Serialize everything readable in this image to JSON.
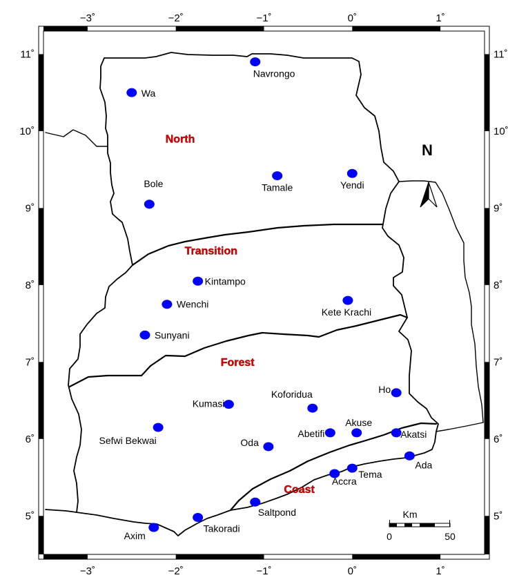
{
  "map": {
    "axes": {
      "x_ticks": [
        {
          "value": -3,
          "label": "−3˚"
        },
        {
          "value": -2,
          "label": "−2˚"
        },
        {
          "value": -1,
          "label": "−1˚"
        },
        {
          "value": 0,
          "label": "0˚"
        },
        {
          "value": 1,
          "label": "1˚"
        }
      ],
      "y_ticks": [
        {
          "value": 5,
          "label": "5˚"
        },
        {
          "value": 6,
          "label": "6˚"
        },
        {
          "value": 7,
          "label": "7˚"
        },
        {
          "value": 8,
          "label": "8˚"
        },
        {
          "value": 9,
          "label": "9˚"
        },
        {
          "value": 10,
          "label": "10˚"
        },
        {
          "value": 11,
          "label": "11˚"
        }
      ],
      "x_range": [
        -3.5,
        1.5
      ],
      "y_range": [
        4.5,
        11.3
      ]
    },
    "zones": [
      {
        "name": "North",
        "lon": -1.95,
        "lat": 9.85
      },
      {
        "name": "Transition",
        "lon": -1.6,
        "lat": 8.4
      },
      {
        "name": "Forest",
        "lon": -1.3,
        "lat": 6.95
      },
      {
        "name": "Coast",
        "lon": -0.6,
        "lat": 5.3
      }
    ],
    "stations": [
      {
        "name": "Navrongo",
        "lon": -1.1,
        "lat": 10.9
      },
      {
        "name": "Wa",
        "lon": -2.5,
        "lat": 10.5
      },
      {
        "name": "Tamale",
        "lon": -0.85,
        "lat": 9.42
      },
      {
        "name": "Yendi",
        "lon": 0.0,
        "lat": 9.45
      },
      {
        "name": "Bole",
        "lon": -2.3,
        "lat": 9.05
      },
      {
        "name": "Kintampo",
        "lon": -1.75,
        "lat": 8.05
      },
      {
        "name": "Wenchi",
        "lon": -2.1,
        "lat": 7.75
      },
      {
        "name": "Kete Krachi",
        "lon": -0.05,
        "lat": 7.8
      },
      {
        "name": "Sunyani",
        "lon": -2.35,
        "lat": 7.35
      },
      {
        "name": "Ho",
        "lon": 0.5,
        "lat": 6.6
      },
      {
        "name": "Koforidua",
        "lon": -0.45,
        "lat": 6.4
      },
      {
        "name": "Kumasi",
        "lon": -1.4,
        "lat": 6.45
      },
      {
        "name": "Sefwi Bekwai",
        "lon": -2.2,
        "lat": 6.15
      },
      {
        "name": "Abetifi",
        "lon": -0.25,
        "lat": 6.08
      },
      {
        "name": "Akuse",
        "lon": 0.05,
        "lat": 6.08
      },
      {
        "name": "Akatsi",
        "lon": 0.5,
        "lat": 6.08
      },
      {
        "name": "Oda",
        "lon": -0.95,
        "lat": 5.9
      },
      {
        "name": "Ada",
        "lon": 0.65,
        "lat": 5.78
      },
      {
        "name": "Tema",
        "lon": 0.0,
        "lat": 5.62
      },
      {
        "name": "Accra",
        "lon": -0.2,
        "lat": 5.55
      },
      {
        "name": "Saltpond",
        "lon": -1.1,
        "lat": 5.18
      },
      {
        "name": "Takoradi",
        "lon": -1.75,
        "lat": 4.98
      },
      {
        "name": "Axim",
        "lon": -2.25,
        "lat": 4.85
      }
    ],
    "north_arrow_label": "N",
    "scale_bar": {
      "unit": "Km",
      "labels": [
        "0",
        "50"
      ]
    },
    "colors": {
      "station": "#0000ff",
      "zone_label": "#e00000",
      "border": "#000000"
    }
  }
}
